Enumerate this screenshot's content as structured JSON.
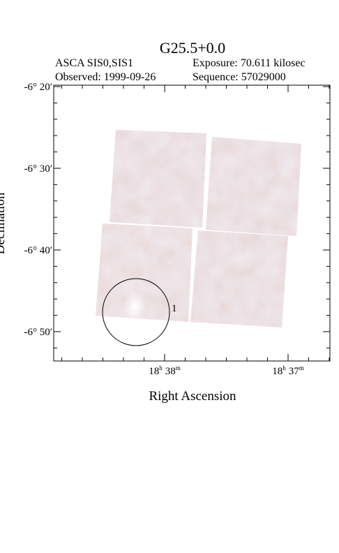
{
  "header": {
    "title": "G25.5+0.0",
    "instrument": "ASCA SIS0,SIS1",
    "exposure": "Exposure: 70.611 kilosec",
    "observed": "Observed: 1999-09-26",
    "sequence": "Sequence: 57029000"
  },
  "axes": {
    "x_label": "Right Ascension",
    "y_label": "Declination",
    "y_ticks": [
      "-6° 20′",
      "-6° 30′",
      "-6° 40′",
      "-6° 50′"
    ],
    "x_ticks": [
      {
        "h": "18",
        "m": "38"
      },
      {
        "h": "18",
        "m": "37"
      }
    ],
    "hour_unit": "h",
    "minute_unit": "m"
  },
  "regions": [
    {
      "label": "1"
    }
  ]
}
